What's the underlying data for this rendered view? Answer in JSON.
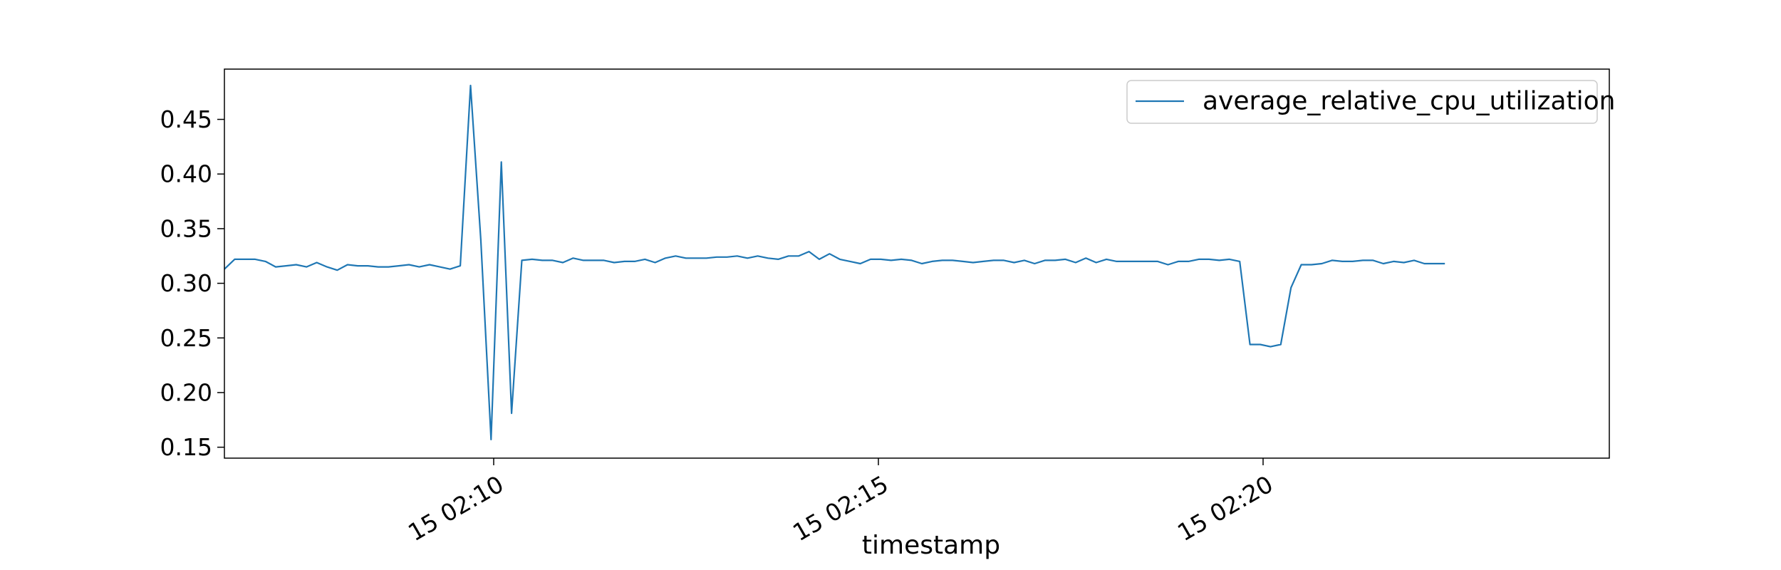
{
  "chart_data": {
    "type": "line",
    "title": "",
    "xlabel": "timestamp",
    "ylabel": "",
    "x_tick_labels": [
      "15 02:10",
      "15 02:15",
      "15 02:20"
    ],
    "x_tick_minutes": [
      10,
      15,
      20
    ],
    "xlim_minutes": [
      6.5,
      24.5
    ],
    "y_ticks": [
      0.15,
      0.2,
      0.25,
      0.3,
      0.35,
      0.4,
      0.45
    ],
    "ylim": [
      0.14,
      0.496
    ],
    "grid": false,
    "legend_position": "upper-right",
    "series": [
      {
        "name": "average_relative_cpu_utilization",
        "color": "#1f77b4",
        "x_minutes_start": 6.5,
        "x_minutes_step": 0.1333,
        "values": [
          0.313,
          0.322,
          0.322,
          0.322,
          0.32,
          0.315,
          0.316,
          0.317,
          0.315,
          0.319,
          0.315,
          0.312,
          0.317,
          0.316,
          0.316,
          0.315,
          0.315,
          0.316,
          0.317,
          0.315,
          0.317,
          0.315,
          0.313,
          0.316,
          0.481,
          0.34,
          0.157,
          0.411,
          0.181,
          0.321,
          0.322,
          0.321,
          0.321,
          0.319,
          0.323,
          0.321,
          0.321,
          0.321,
          0.319,
          0.32,
          0.32,
          0.322,
          0.319,
          0.323,
          0.325,
          0.323,
          0.323,
          0.323,
          0.324,
          0.324,
          0.325,
          0.323,
          0.325,
          0.323,
          0.322,
          0.325,
          0.325,
          0.329,
          0.322,
          0.327,
          0.322,
          0.32,
          0.318,
          0.322,
          0.322,
          0.321,
          0.322,
          0.321,
          0.318,
          0.32,
          0.321,
          0.321,
          0.32,
          0.319,
          0.32,
          0.321,
          0.321,
          0.319,
          0.321,
          0.318,
          0.321,
          0.321,
          0.322,
          0.319,
          0.323,
          0.319,
          0.322,
          0.32,
          0.32,
          0.32,
          0.32,
          0.32,
          0.317,
          0.32,
          0.32,
          0.322,
          0.322,
          0.321,
          0.322,
          0.32,
          0.244,
          0.244,
          0.242,
          0.244,
          0.296,
          0.317,
          0.317,
          0.318,
          0.321,
          0.32,
          0.32,
          0.321,
          0.321,
          0.318,
          0.32,
          0.319,
          0.321,
          0.318,
          0.318,
          0.318
        ]
      }
    ]
  }
}
